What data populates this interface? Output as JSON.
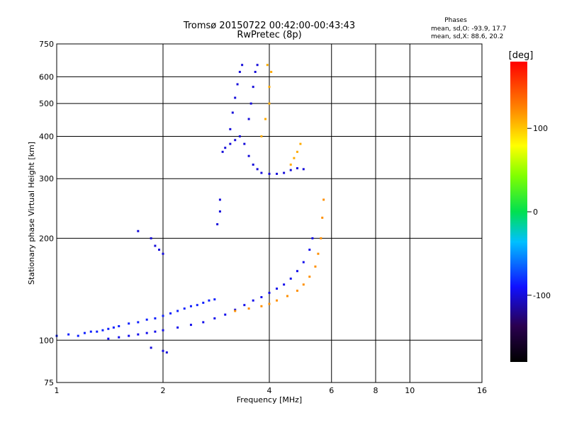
{
  "chart_data": {
    "type": "scatter",
    "title": "Tromsø 20150722 00:42:00-00:43:43",
    "subtitle": "RwPretec (8p)",
    "xlabel": "Frequency [MHz]",
    "ylabel": "Stationary phase Virtual Height [km]",
    "x_scale": "log",
    "y_scale": "log",
    "xlim": [
      1,
      16
    ],
    "ylim": [
      75,
      750
    ],
    "x_ticks": [
      "1",
      "2",
      "4",
      "6",
      "8",
      "10",
      "16"
    ],
    "y_ticks": [
      "75",
      "100",
      "200",
      "300",
      "400",
      "500",
      "600",
      "750"
    ],
    "grid": true,
    "phases_box": {
      "title": "Phases",
      "line_o": "mean, sd,O: -93.9, 17.7",
      "line_x": "mean, sd,X: 88.6, 20.2"
    },
    "colorbar": {
      "label": "[deg]",
      "range": [
        -180,
        180
      ],
      "ticks": [
        "100",
        "0",
        "-100"
      ],
      "tick_values": [
        100,
        0,
        -100
      ]
    },
    "series": [
      {
        "phase": -85,
        "points": [
          [
            1.0,
            103
          ],
          [
            1.08,
            104
          ],
          [
            1.15,
            103
          ],
          [
            1.2,
            105
          ],
          [
            1.25,
            106
          ],
          [
            1.3,
            106
          ],
          [
            1.35,
            107
          ],
          [
            1.4,
            108
          ],
          [
            1.45,
            109
          ],
          [
            1.5,
            110
          ],
          [
            1.6,
            112
          ],
          [
            1.7,
            113
          ],
          [
            1.8,
            115
          ],
          [
            1.9,
            116
          ],
          [
            2.0,
            118
          ],
          [
            2.1,
            120
          ],
          [
            2.2,
            122
          ],
          [
            2.3,
            124
          ],
          [
            2.4,
            126
          ],
          [
            2.5,
            127
          ],
          [
            2.6,
            129
          ],
          [
            2.7,
            131
          ],
          [
            2.8,
            132
          ]
        ]
      },
      {
        "phase": -95,
        "points": [
          [
            1.4,
            101
          ],
          [
            1.5,
            102
          ],
          [
            1.6,
            103
          ],
          [
            1.7,
            104
          ],
          [
            1.8,
            105
          ],
          [
            1.9,
            106
          ],
          [
            2.0,
            107
          ],
          [
            2.2,
            109
          ],
          [
            2.4,
            111
          ],
          [
            2.6,
            113
          ],
          [
            2.8,
            116
          ],
          [
            3.0,
            119
          ],
          [
            3.2,
            123
          ],
          [
            3.4,
            127
          ],
          [
            3.6,
            131
          ],
          [
            3.8,
            134
          ],
          [
            4.0,
            138
          ],
          [
            4.2,
            142
          ],
          [
            4.4,
            146
          ],
          [
            4.6,
            152
          ],
          [
            4.8,
            160
          ],
          [
            5.0,
            170
          ],
          [
            5.2,
            185
          ],
          [
            5.3,
            200
          ]
        ]
      },
      {
        "phase": 120,
        "points": [
          [
            3.2,
            122
          ],
          [
            3.5,
            124
          ],
          [
            3.8,
            126
          ],
          [
            4.0,
            128
          ],
          [
            4.2,
            131
          ],
          [
            4.5,
            135
          ],
          [
            4.8,
            140
          ],
          [
            5.0,
            146
          ],
          [
            5.2,
            154
          ],
          [
            5.4,
            165
          ],
          [
            5.5,
            180
          ],
          [
            5.6,
            200
          ],
          [
            5.65,
            230
          ],
          [
            5.7,
            260
          ]
        ]
      },
      {
        "phase": -100,
        "points": [
          [
            2.95,
            360
          ],
          [
            3.0,
            370
          ],
          [
            3.1,
            380
          ],
          [
            3.2,
            390
          ],
          [
            3.3,
            400
          ],
          [
            3.4,
            380
          ],
          [
            3.5,
            350
          ],
          [
            3.6,
            330
          ],
          [
            3.7,
            320
          ],
          [
            3.8,
            312
          ],
          [
            4.0,
            310
          ],
          [
            4.2,
            310
          ],
          [
            4.4,
            312
          ],
          [
            4.6,
            318
          ],
          [
            4.8,
            322
          ],
          [
            5.0,
            320
          ],
          [
            3.1,
            420
          ],
          [
            3.15,
            470
          ],
          [
            3.2,
            520
          ],
          [
            3.25,
            570
          ],
          [
            3.3,
            620
          ],
          [
            3.35,
            650
          ],
          [
            3.5,
            450
          ],
          [
            3.55,
            500
          ],
          [
            3.6,
            560
          ],
          [
            3.65,
            620
          ],
          [
            3.7,
            650
          ]
        ]
      },
      {
        "phase": 110,
        "points": [
          [
            3.8,
            400
          ],
          [
            3.9,
            450
          ],
          [
            4.0,
            500
          ],
          [
            4.0,
            560
          ],
          [
            4.05,
            620
          ],
          [
            3.95,
            650
          ],
          [
            4.6,
            330
          ],
          [
            4.7,
            345
          ],
          [
            4.8,
            360
          ],
          [
            4.9,
            380
          ]
        ]
      },
      {
        "phase": -100,
        "points": [
          [
            2.9,
            260
          ],
          [
            2.9,
            240
          ],
          [
            2.85,
            220
          ],
          [
            1.7,
            210
          ],
          [
            1.85,
            200
          ],
          [
            1.9,
            190
          ],
          [
            1.95,
            185
          ],
          [
            2.0,
            180
          ],
          [
            1.85,
            95
          ],
          [
            2.0,
            93
          ],
          [
            2.05,
            92
          ]
        ]
      }
    ]
  }
}
